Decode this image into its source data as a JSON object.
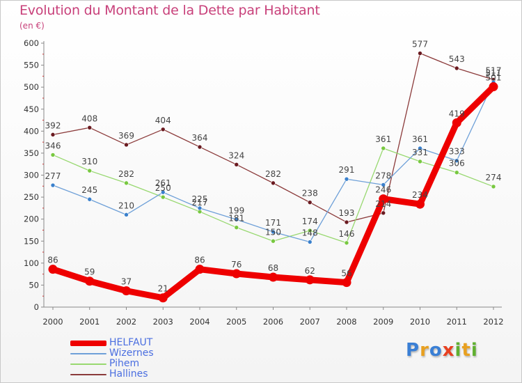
{
  "title": "Evolution du Montant de la Dette par Habitant",
  "unit": "(en €)",
  "logo": {
    "letters": [
      {
        "ch": "P",
        "color": "#3a7fd5"
      },
      {
        "ch": "r",
        "color": "#e8a020"
      },
      {
        "ch": "o",
        "color": "#3a7fd5"
      },
      {
        "ch": "x",
        "color": "#e84020"
      },
      {
        "ch": "i",
        "color": "#60b030"
      },
      {
        "ch": "t",
        "color": "#e8a020"
      },
      {
        "ch": "i",
        "color": "#60b030"
      }
    ]
  },
  "chart_data": {
    "type": "line",
    "title": "Evolution du Montant de la Dette par Habitant",
    "subtitle": "(en €)",
    "xlabel": "",
    "ylabel": "",
    "x": [
      "2000",
      "2001",
      "2002",
      "2003",
      "2004",
      "2005",
      "2006",
      "2007",
      "2008",
      "2009",
      "2010",
      "2011",
      "2012"
    ],
    "ylim": [
      0,
      600
    ],
    "yticks": [
      0,
      50,
      100,
      150,
      200,
      250,
      300,
      350,
      400,
      450,
      500,
      550,
      600
    ],
    "grid": false,
    "legend": "bottom-left",
    "series": [
      {
        "name": "Hallines",
        "color": "#8b3a3a",
        "dot": "#6a1a20",
        "values": [
          392,
          408,
          369,
          404,
          364,
          324,
          282,
          238,
          193,
          214,
          577,
          543,
          517
        ]
      },
      {
        "name": "Pihem",
        "color": "#98d870",
        "dot": "#78c840",
        "values": [
          346,
          310,
          282,
          250,
          217,
          181,
          150,
          174,
          146,
          361,
          331,
          306,
          274
        ]
      },
      {
        "name": "Wizernes",
        "color": "#6ea0d8",
        "dot": "#3a80cc",
        "values": [
          277,
          245,
          210,
          261,
          225,
          199,
          171,
          148,
          291,
          278,
          361,
          333,
          511
        ]
      },
      {
        "name": "HELFAUT",
        "color": "#ee0000",
        "dot": "#ee0000",
        "values": [
          86,
          59,
          37,
          21,
          86,
          76,
          68,
          62,
          56,
          246,
          234,
          419,
          501
        ]
      }
    ]
  }
}
